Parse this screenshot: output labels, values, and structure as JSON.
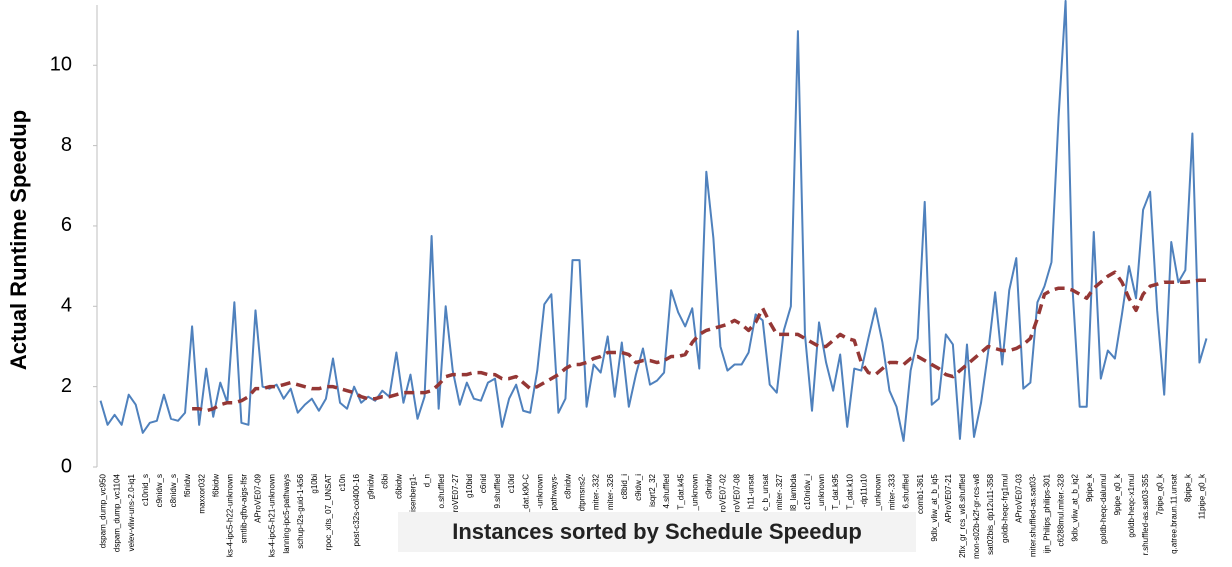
{
  "chart_data": {
    "type": "line",
    "y_label": "Actual Runtime Speedup",
    "x_label": "Instances sorted by Schedule Speedup",
    "ylim": [
      0,
      11.5
    ],
    "yticks": [
      0,
      2,
      4,
      6,
      8,
      10
    ],
    "grid": false,
    "categories": [
      "dspam_dump_vc950",
      null,
      "dspam_dump_vc1104",
      null,
      "velev-vliw-uns-2.0-iq1",
      null,
      "c10nid_s",
      null,
      "c9nidw_s",
      null,
      "c8nidw_s",
      null,
      "f6nidw",
      null,
      "maxxor032",
      null,
      "f6bidw",
      null,
      "ks-4-ipc5-h22-unknown",
      null,
      "smtlib-qfbv-aigs-lfsr",
      null,
      "AProVE07-09",
      null,
      "ks-4-ipc5-h21-unknown",
      null,
      "lanning-ipc5-pathways",
      null,
      "schup-l2s-guid-1-k56",
      null,
      "g10bi",
      null,
      "rpoc_xits_07_UNSAT",
      null,
      "c10n",
      null,
      "post-c32s-col400-16",
      null,
      "g9nidw",
      null,
      "c6bi",
      null,
      "c6bidw",
      null,
      "isenberg1-",
      null,
      "d_n",
      null,
      "o.shuffled",
      null,
      "roVE07-27",
      null,
      "g10bid",
      null,
      "c6nid",
      null,
      "9.shuffled",
      null,
      "c10id",
      null,
      "_dat.k90-C",
      null,
      "-unknown",
      null,
      "pathways-",
      null,
      "c8nidw",
      null,
      "dtpmsns2-",
      null,
      "miter-.332",
      null,
      "miter-.326",
      null,
      "c8bid_i",
      null,
      "c9idw_i",
      null,
      "isqrt2_32",
      null,
      "4.shuffled",
      null,
      "T_dat.k45",
      null,
      "_unknown",
      null,
      "c9nidw",
      null,
      "roVE07-02",
      null,
      "roVE07-08",
      null,
      "h11-unsat",
      null,
      "c_b_unsat",
      null,
      "miter-.327",
      null,
      "l8_lambda",
      null,
      "c10nidw_i",
      null,
      "_unknown",
      null,
      "T_dat.k95",
      null,
      "T_dat.k10",
      null,
      "-dp11u10",
      null,
      "_unknown",
      null,
      "miter-.333",
      null,
      "6.shuffled",
      null,
      "comb1-361",
      null,
      "9dlx_vliw_at_b_iq5",
      null,
      "AProVE07-21",
      null,
      "2fix_gr_rcs_w8.shuffled",
      null,
      "mon-s02b-k2f-gr-rcs-w8",
      null,
      "sat02bis_dp12u11-358",
      null,
      "goldb-heqc-frg1mul",
      null,
      "AProVE07-03",
      null,
      "miter.shuffled-as.sat03-",
      null,
      "ijn_Philips_philips-301",
      null,
      "c6288mul.miter.-328",
      null,
      "9dlx_vliw_at_b_iq2",
      null,
      "9pipe_k",
      null,
      "goldb-heqc-dalumul",
      null,
      "9pipe_q0_k",
      null,
      "goldb-heqc-x1mul",
      null,
      "r.shuffled-as.sat03-355",
      null,
      "7pipe_q0_k",
      null,
      "q.atree.braun.11.unsat",
      null,
      "8pipe_k",
      null,
      "11pipe_q0_k",
      null
    ],
    "series": [
      {
        "color": "#4f81bd",
        "style": "solid",
        "values": [
          1.65,
          1.05,
          1.3,
          1.05,
          1.8,
          1.55,
          0.85,
          1.1,
          1.15,
          1.8,
          1.2,
          1.15,
          1.35,
          3.5,
          1.05,
          2.45,
          1.25,
          2.1,
          1.6,
          4.1,
          1.1,
          1.05,
          3.9,
          2.0,
          1.95,
          2.05,
          1.7,
          1.95,
          1.35,
          1.55,
          1.7,
          1.4,
          1.7,
          2.7,
          1.6,
          1.45,
          2.0,
          1.6,
          1.75,
          1.65,
          1.9,
          1.75,
          2.85,
          1.6,
          2.3,
          1.2,
          1.75,
          5.75,
          1.45,
          4.0,
          2.4,
          1.55,
          2.1,
          1.7,
          1.65,
          2.1,
          2.2,
          1.0,
          1.7,
          2.05,
          1.4,
          1.35,
          2.4,
          4.05,
          4.3,
          1.35,
          1.7,
          5.15,
          5.15,
          1.5,
          2.55,
          2.35,
          3.25,
          1.75,
          3.1,
          1.5,
          2.3,
          2.95,
          2.05,
          2.15,
          2.35,
          4.4,
          3.85,
          3.5,
          3.95,
          2.45,
          7.35,
          5.7,
          3.0,
          2.4,
          2.55,
          2.55,
          2.85,
          3.8,
          3.65,
          2.05,
          1.85,
          3.4,
          4.0,
          10.85,
          3.3,
          1.4,
          3.6,
          2.6,
          1.9,
          2.8,
          1.0,
          2.45,
          2.4,
          3.2,
          3.95,
          3.1,
          1.9,
          1.5,
          0.65,
          2.4,
          3.2,
          6.6,
          1.55,
          1.7,
          3.3,
          3.05,
          0.7,
          3.05,
          0.75,
          1.6,
          2.85,
          4.35,
          2.55,
          4.4,
          5.2,
          1.95,
          2.1,
          4.1,
          4.5,
          5.1,
          8.7,
          11.6,
          4.4,
          1.5,
          1.5,
          5.85,
          2.2,
          2.9,
          2.7,
          3.8,
          5.0,
          4.2,
          6.4,
          6.85,
          3.9,
          1.8,
          5.6,
          4.6,
          4.9,
          8.3,
          2.6,
          3.2
        ]
      },
      {
        "color": "#953735",
        "style": "dashed",
        "values": [
          null,
          null,
          null,
          null,
          null,
          null,
          null,
          null,
          null,
          null,
          null,
          null,
          null,
          1.45,
          1.45,
          1.4,
          1.45,
          1.55,
          1.6,
          1.6,
          1.65,
          1.75,
          1.95,
          1.95,
          2.0,
          2.0,
          2.05,
          2.1,
          2.05,
          2.0,
          1.95,
          1.95,
          2.0,
          2.0,
          1.95,
          1.9,
          1.85,
          1.75,
          1.7,
          1.7,
          1.75,
          1.75,
          1.8,
          1.85,
          1.85,
          1.85,
          1.85,
          1.9,
          2.05,
          2.25,
          2.3,
          2.3,
          2.3,
          2.35,
          2.35,
          2.3,
          2.3,
          2.2,
          2.2,
          2.25,
          2.1,
          1.95,
          2.0,
          2.1,
          2.2,
          2.3,
          2.45,
          2.55,
          2.55,
          2.6,
          2.7,
          2.75,
          2.85,
          2.85,
          2.85,
          2.8,
          2.6,
          2.65,
          2.65,
          2.6,
          2.65,
          2.75,
          2.75,
          2.8,
          3.1,
          3.3,
          3.4,
          3.45,
          3.5,
          3.55,
          3.65,
          3.55,
          3.4,
          3.6,
          3.95,
          3.6,
          3.3,
          3.3,
          3.3,
          3.3,
          3.2,
          3.1,
          3.0,
          3.0,
          3.15,
          3.3,
          3.2,
          3.15,
          2.6,
          2.35,
          2.3,
          2.45,
          2.6,
          2.6,
          2.55,
          2.7,
          2.75,
          2.65,
          2.55,
          2.45,
          2.3,
          2.25,
          2.4,
          2.55,
          2.7,
          2.85,
          3.0,
          2.95,
          2.9,
          2.9,
          2.95,
          3.05,
          3.2,
          3.7,
          4.3,
          4.4,
          4.45,
          4.45,
          4.4,
          4.3,
          4.2,
          4.45,
          4.6,
          4.75,
          4.85,
          4.6,
          4.2,
          3.9,
          4.3,
          4.5,
          4.55,
          4.6,
          4.6,
          4.6,
          4.6,
          4.62,
          4.65,
          4.65
        ]
      }
    ]
  }
}
